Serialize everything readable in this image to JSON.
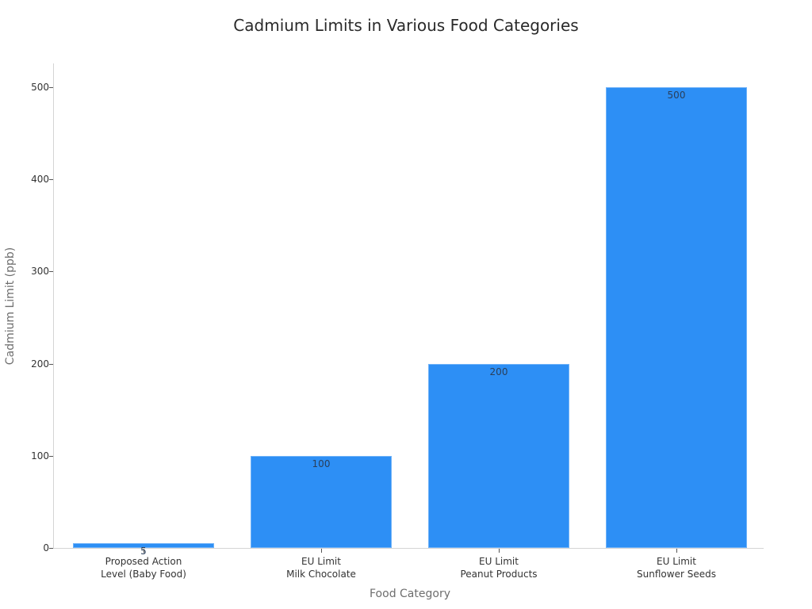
{
  "chart_data": {
    "type": "bar",
    "title": "Cadmium Limits in Various Food Categories",
    "xlabel": "Food Category",
    "ylabel": "Cadmium Limit (ppb)",
    "categories": [
      "Proposed Action\nLevel (Baby Food)",
      "EU Limit\nMilk Chocolate",
      "EU Limit\nPeanut Products",
      "EU Limit\nSunflower Seeds"
    ],
    "category_lines": [
      [
        "Proposed Action",
        "Level (Baby Food)"
      ],
      [
        "EU Limit",
        "Milk Chocolate"
      ],
      [
        "EU Limit",
        "Peanut Products"
      ],
      [
        "EU Limit",
        "Sunflower Seeds"
      ]
    ],
    "values": [
      5,
      100,
      200,
      500
    ],
    "value_labels": [
      "5",
      "100",
      "200",
      "500"
    ],
    "yticks": [
      0,
      100,
      200,
      300,
      400,
      500
    ],
    "ytick_labels": [
      "0",
      "100",
      "200",
      "300",
      "400",
      "500"
    ],
    "ylim": [
      0,
      526
    ],
    "grid": false,
    "legend": null,
    "bar_color": "#2d8ff5"
  }
}
